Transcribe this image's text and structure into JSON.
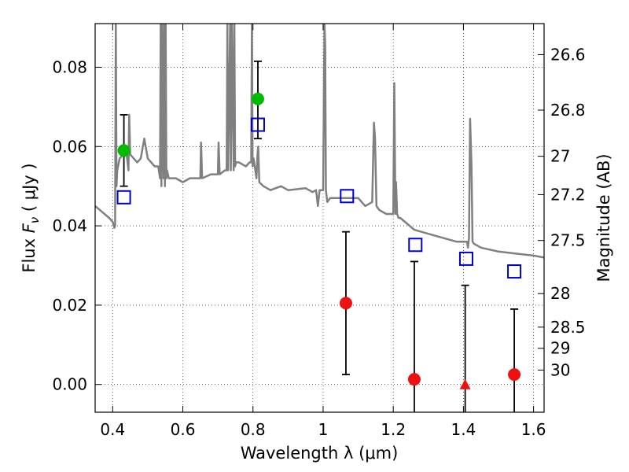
{
  "chart_data": {
    "type": "scatter",
    "xlabel": "Wavelength  λ (μm)",
    "ylabel": "Flux  F_ν  ( μJy )",
    "y2label": "Magnitude (AB)",
    "xlim": [
      0.35,
      1.63
    ],
    "ylim": [
      -0.007,
      0.091
    ],
    "grid": true,
    "x_ticks": [
      0.4,
      0.6,
      0.8,
      1.0,
      1.2,
      1.4,
      1.6
    ],
    "x_tick_labels": [
      "0.4",
      "0.6",
      "0.8",
      "1",
      "1.2",
      "1.4",
      "1.6"
    ],
    "y_ticks": [
      0.0,
      0.02,
      0.04,
      0.06,
      0.08
    ],
    "y_tick_labels": [
      "0.00",
      "0.02",
      "0.04",
      "0.06",
      "0.08"
    ],
    "mag_ticks": [
      26.6,
      26.8,
      27,
      27.2,
      27.5,
      28,
      28.5,
      29,
      30
    ],
    "mag_tick_labels": [
      "26.6",
      "26.8",
      "27",
      "27.2",
      "27.5",
      "28",
      "28.5",
      "29",
      "30"
    ],
    "series": [
      {
        "marker": "circle",
        "color": "#00bb00",
        "points": [
          {
            "x": 0.432,
            "y": 0.059,
            "yerr_low": 0.05,
            "yerr_high": 0.068
          },
          {
            "x": 0.814,
            "y": 0.072,
            "yerr_low": 0.062,
            "yerr_high": 0.0815
          }
        ]
      },
      {
        "marker": "circle",
        "color": "#ee1111",
        "points": [
          {
            "x": 1.065,
            "y": 0.0205,
            "yerr_low": 0.0025,
            "yerr_high": 0.0385
          },
          {
            "x": 1.26,
            "y": 0.0013,
            "yerr_low": -0.007,
            "yerr_high": 0.031
          },
          {
            "x": 1.545,
            "y": 0.0025,
            "yerr_low": -0.007,
            "yerr_high": 0.019
          }
        ]
      },
      {
        "marker": "triangle",
        "color": "#ee1111",
        "points": [
          {
            "x": 1.405,
            "y": 0.0,
            "yerr_low": -0.007,
            "yerr_high": 0.025
          }
        ]
      },
      {
        "marker": "open-square",
        "color": "#0000cc",
        "points": [
          {
            "x": 0.432,
            "y": 0.0472
          },
          {
            "x": 0.814,
            "y": 0.0655
          },
          {
            "x": 1.068,
            "y": 0.0475
          },
          {
            "x": 1.263,
            "y": 0.0352
          },
          {
            "x": 1.408,
            "y": 0.0317
          },
          {
            "x": 1.545,
            "y": 0.0285
          }
        ]
      }
    ],
    "spectrum": {
      "color": "#808080",
      "x": [
        0.35,
        0.37,
        0.39,
        0.4,
        0.405,
        0.407,
        0.409,
        0.411,
        0.413,
        0.42,
        0.43,
        0.44,
        0.445,
        0.447,
        0.45,
        0.46,
        0.47,
        0.48,
        0.49,
        0.5,
        0.52,
        0.53,
        0.535,
        0.537,
        0.539,
        0.541,
        0.545,
        0.547,
        0.549,
        0.551,
        0.553,
        0.555,
        0.56,
        0.58,
        0.6,
        0.62,
        0.65,
        0.652,
        0.655,
        0.68,
        0.7,
        0.702,
        0.705,
        0.72,
        0.725,
        0.727,
        0.729,
        0.735,
        0.737,
        0.74,
        0.745,
        0.747,
        0.749,
        0.752,
        0.76,
        0.78,
        0.79,
        0.795,
        0.797,
        0.799,
        0.802,
        0.81,
        0.813,
        0.815,
        0.818,
        0.83,
        0.85,
        0.88,
        0.9,
        0.95,
        0.96,
        0.97,
        0.98,
        0.985,
        0.99,
        1.0,
        1.004,
        1.006,
        1.008,
        1.012,
        1.02,
        1.05,
        1.1,
        1.12,
        1.14,
        1.145,
        1.148,
        1.152,
        1.16,
        1.18,
        1.2,
        1.203,
        1.206,
        1.208,
        1.211,
        1.215,
        1.22,
        1.26,
        1.3,
        1.34,
        1.38,
        1.41,
        1.413,
        1.416,
        1.419,
        1.423,
        1.426,
        1.43,
        1.45,
        1.5,
        1.55,
        1.6,
        1.63
      ],
      "y": [
        0.045,
        0.0435,
        0.042,
        0.041,
        0.0395,
        0.04,
        0.091,
        0.05,
        0.054,
        0.057,
        0.058,
        0.058,
        0.054,
        0.068,
        0.058,
        0.057,
        0.056,
        0.057,
        0.062,
        0.057,
        0.055,
        0.055,
        0.052,
        0.091,
        0.05,
        0.091,
        0.052,
        0.091,
        0.05,
        0.091,
        0.052,
        0.054,
        0.052,
        0.052,
        0.051,
        0.052,
        0.052,
        0.061,
        0.052,
        0.053,
        0.053,
        0.061,
        0.053,
        0.054,
        0.054,
        0.091,
        0.054,
        0.091,
        0.054,
        0.091,
        0.054,
        0.091,
        0.055,
        0.056,
        0.056,
        0.055,
        0.056,
        0.056,
        0.091,
        0.055,
        0.057,
        0.052,
        0.058,
        0.06,
        0.051,
        0.05,
        0.049,
        0.05,
        0.049,
        0.0495,
        0.049,
        0.0485,
        0.049,
        0.045,
        0.049,
        0.049,
        0.091,
        0.085,
        0.049,
        0.046,
        0.047,
        0.047,
        0.047,
        0.045,
        0.046,
        0.066,
        0.062,
        0.045,
        0.044,
        0.043,
        0.043,
        0.076,
        0.043,
        0.051,
        0.043,
        0.042,
        0.042,
        0.039,
        0.038,
        0.037,
        0.036,
        0.036,
        0.0345,
        0.037,
        0.067,
        0.055,
        0.036,
        0.0355,
        0.0345,
        0.0335,
        0.033,
        0.0325,
        0.032
      ]
    }
  }
}
